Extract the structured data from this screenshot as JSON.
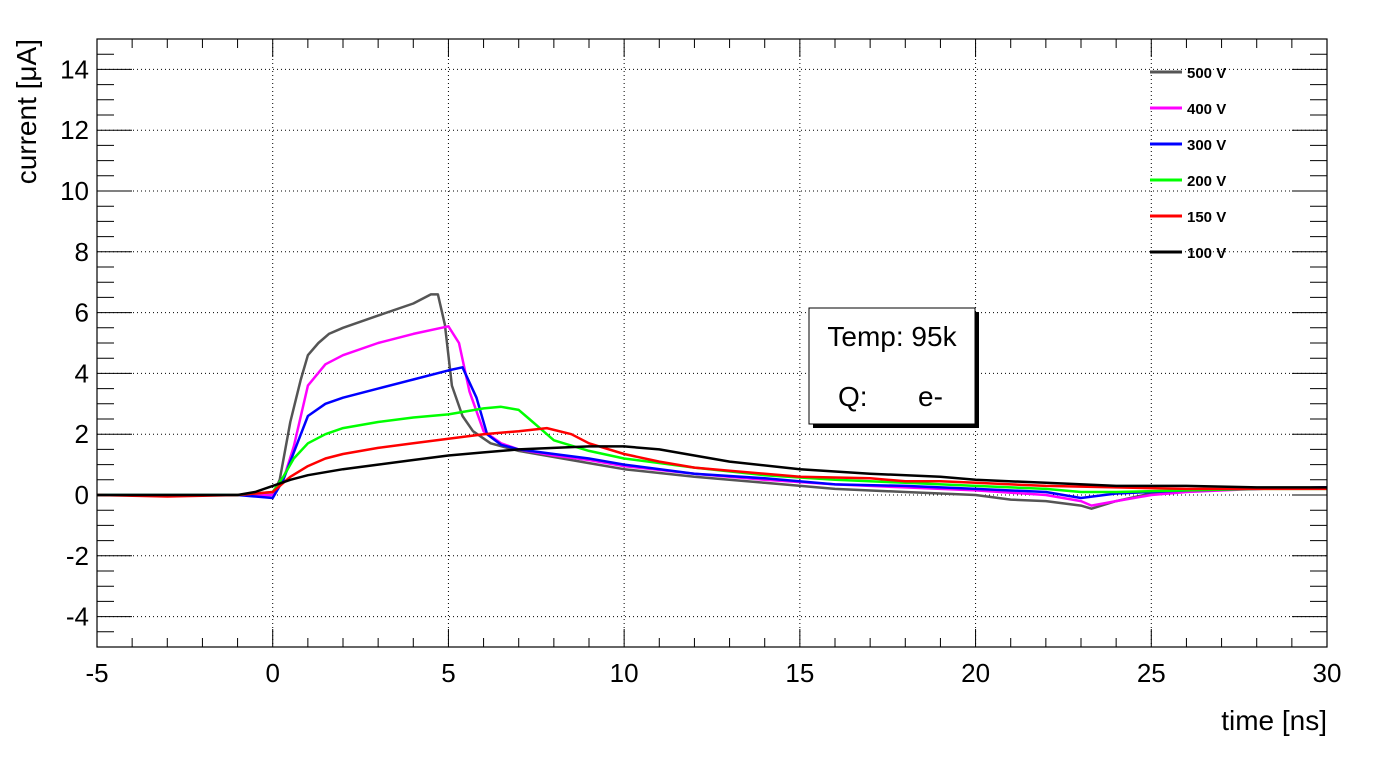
{
  "chart_data": {
    "type": "line",
    "xlabel": "time [ns]",
    "ylabel": "current [μA]",
    "xlim": [
      -5,
      30
    ],
    "ylim": [
      -5,
      15
    ],
    "xticks": [
      -5,
      0,
      5,
      10,
      15,
      20,
      25,
      30
    ],
    "yticks": [
      -4,
      -2,
      0,
      2,
      4,
      6,
      8,
      10,
      12,
      14
    ],
    "grid": true,
    "legend_position": "top-right",
    "annotation": {
      "line1": "Temp: 95k",
      "line2_label": "Q:",
      "line2_value": "e-"
    },
    "series": [
      {
        "name": "500 V",
        "color": "#555555",
        "x": [
          -5,
          -1,
          0,
          0.2,
          0.5,
          0.8,
          1.0,
          1.3,
          1.6,
          2,
          3,
          4,
          4.5,
          4.7,
          4.9,
          5.1,
          5.4,
          5.7,
          6.2,
          7,
          8,
          9,
          10,
          12,
          14,
          16,
          18,
          20,
          21,
          22,
          23,
          23.3,
          24,
          25,
          26,
          28,
          30
        ],
        "y": [
          0,
          0,
          0,
          0.5,
          2.4,
          3.8,
          4.6,
          5.0,
          5.3,
          5.5,
          5.9,
          6.3,
          6.6,
          6.6,
          5.6,
          3.6,
          2.6,
          2.1,
          1.7,
          1.45,
          1.25,
          1.05,
          0.85,
          0.6,
          0.4,
          0.2,
          0.1,
          0,
          -0.15,
          -0.2,
          -0.35,
          -0.45,
          -0.2,
          0.05,
          0.15,
          0.2,
          0.25
        ]
      },
      {
        "name": "400 V",
        "color": "#ff00ff",
        "x": [
          -5,
          -1,
          0,
          0.3,
          0.6,
          1,
          1.5,
          2,
          3,
          4,
          5,
          5.3,
          5.6,
          6.0,
          6.5,
          7,
          8,
          9,
          10,
          12,
          14,
          16,
          18,
          20,
          22,
          23,
          23.3,
          24,
          25,
          26,
          28,
          30
        ],
        "y": [
          0,
          0,
          0,
          0.5,
          1.6,
          3.6,
          4.3,
          4.6,
          5.0,
          5.3,
          5.55,
          5.0,
          3.4,
          2.1,
          1.7,
          1.5,
          1.3,
          1.15,
          0.95,
          0.7,
          0.5,
          0.35,
          0.25,
          0.15,
          0,
          -0.2,
          -0.35,
          -0.2,
          0,
          0.1,
          0.2,
          0.25
        ]
      },
      {
        "name": "300 V",
        "color": "#0000ff",
        "x": [
          -5,
          -1,
          0,
          0.3,
          0.6,
          1,
          1.5,
          2,
          3,
          4,
          5,
          5.4,
          5.8,
          6.1,
          6.5,
          7,
          8,
          9,
          10,
          12,
          14,
          16,
          18,
          20,
          22,
          23,
          24,
          25,
          26,
          28,
          30
        ],
        "y": [
          0,
          0,
          -0.1,
          0.5,
          1.4,
          2.6,
          3.0,
          3.2,
          3.5,
          3.8,
          4.1,
          4.2,
          3.2,
          2.0,
          1.65,
          1.5,
          1.35,
          1.2,
          1.0,
          0.7,
          0.55,
          0.35,
          0.3,
          0.2,
          0.1,
          -0.1,
          0.05,
          0.1,
          0.15,
          0.2,
          0.25
        ]
      },
      {
        "name": "200 V",
        "color": "#00ff00",
        "x": [
          -5,
          -1,
          0,
          0.3,
          0.6,
          1,
          1.5,
          2,
          3,
          4,
          5,
          6,
          6.5,
          7,
          7.3,
          7.6,
          8,
          9,
          10,
          12,
          14,
          16,
          18,
          20,
          22,
          23,
          24,
          26,
          28,
          30
        ],
        "y": [
          0,
          0,
          0.1,
          0.6,
          1.2,
          1.7,
          2.0,
          2.2,
          2.4,
          2.55,
          2.65,
          2.85,
          2.9,
          2.8,
          2.5,
          2.2,
          1.8,
          1.45,
          1.2,
          0.9,
          0.65,
          0.5,
          0.4,
          0.3,
          0.2,
          0.1,
          0.1,
          0.15,
          0.2,
          0.2
        ]
      },
      {
        "name": "150 V",
        "color": "#ff0000",
        "x": [
          -5,
          -3,
          -1,
          0,
          0.5,
          1,
          1.5,
          2,
          3,
          4,
          5,
          6,
          7,
          7.8,
          8.5,
          9,
          10,
          11,
          12,
          13,
          15,
          17,
          18,
          19,
          20,
          22,
          24,
          26,
          28,
          30
        ],
        "y": [
          0,
          -0.05,
          0,
          0.1,
          0.6,
          0.95,
          1.2,
          1.35,
          1.55,
          1.7,
          1.85,
          2.0,
          2.1,
          2.2,
          2.0,
          1.7,
          1.35,
          1.1,
          0.9,
          0.8,
          0.6,
          0.55,
          0.45,
          0.45,
          0.4,
          0.3,
          0.25,
          0.2,
          0.2,
          0.2
        ]
      },
      {
        "name": "100 V",
        "color": "#000000",
        "x": [
          -5,
          -1,
          -0.5,
          0,
          0.5,
          1,
          1.5,
          2,
          3,
          4,
          5,
          6,
          7,
          8,
          9,
          10,
          11,
          12,
          13,
          15,
          17,
          19,
          20,
          22,
          24,
          26,
          28,
          30
        ],
        "y": [
          0,
          0,
          0.1,
          0.3,
          0.5,
          0.65,
          0.75,
          0.85,
          1.0,
          1.15,
          1.3,
          1.4,
          1.5,
          1.55,
          1.6,
          1.6,
          1.5,
          1.3,
          1.1,
          0.85,
          0.7,
          0.6,
          0.5,
          0.4,
          0.3,
          0.3,
          0.25,
          0.25
        ]
      }
    ]
  }
}
